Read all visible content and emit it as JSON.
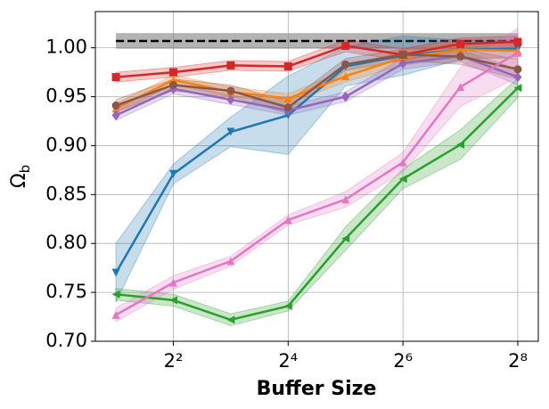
{
  "chart_data": {
    "type": "line",
    "xlabel": "Buffer Size",
    "ylabel": {
      "symbol": "Ω",
      "subscript": "b"
    },
    "xscale": "log2",
    "x": [
      2,
      4,
      8,
      16,
      32,
      64,
      128,
      256
    ],
    "xlim": [
      1.56,
      328
    ],
    "xticks": [
      {
        "value": 4,
        "label": "2²"
      },
      {
        "value": 16,
        "label": "2⁴"
      },
      {
        "value": 64,
        "label": "2⁶"
      },
      {
        "value": 256,
        "label": "2⁸"
      }
    ],
    "ylim": [
      0.7,
      1.037
    ],
    "yticks": [
      {
        "value": 0.7,
        "label": "0.70"
      },
      0.75,
      {
        "value": 0.8,
        "label": "0.80"
      },
      0.85,
      {
        "value": 0.9,
        "label": "0.90"
      },
      0.95,
      {
        "value": 1,
        "label": "1.00"
      }
    ],
    "grid": true,
    "reference": {
      "value": 1.007,
      "error": 0.008,
      "color": "#000000",
      "band_color": "#808080"
    },
    "series": [
      {
        "color": "#1f77b4",
        "marker": "triangle-down",
        "values": [
          0.77,
          0.871,
          0.914,
          0.931,
          0.981,
          0.992,
          0.998,
          0.999
        ],
        "error": [
          0.03,
          0.01,
          0.015,
          0.04,
          0.02,
          0.02,
          0.01,
          0.008
        ]
      },
      {
        "color": "#ff7f0e",
        "marker": "triangle-up",
        "values": [
          0.938,
          0.967,
          0.955,
          0.948,
          0.971,
          0.99,
          0.998,
          0.997
        ],
        "error": [
          0.005,
          0.005,
          0.005,
          0.005,
          0.006,
          0.008,
          0.008,
          0.008
        ]
      },
      {
        "color": "#2ca02c",
        "marker": "triangle-left",
        "values": [
          0.748,
          0.742,
          0.722,
          0.736,
          0.805,
          0.866,
          0.901,
          0.959
        ],
        "error": [
          0.006,
          0.006,
          0.006,
          0.005,
          0.012,
          0.01,
          0.015,
          0.01
        ]
      },
      {
        "color": "#d62728",
        "marker": "square",
        "values": [
          0.97,
          0.975,
          0.982,
          0.981,
          1.002,
          0.993,
          1.004,
          1.006
        ],
        "error": [
          0.005,
          0.005,
          0.005,
          0.005,
          0.006,
          0.006,
          0.006,
          0.006
        ]
      },
      {
        "color": "#9467bd",
        "marker": "diamond",
        "values": [
          0.931,
          0.958,
          0.947,
          0.936,
          0.95,
          0.984,
          0.992,
          0.97
        ],
        "error": [
          0.005,
          0.005,
          0.005,
          0.005,
          0.005,
          0.006,
          0.006,
          0.008
        ]
      },
      {
        "color": "#8c564b",
        "marker": "circle",
        "values": [
          0.941,
          0.962,
          0.956,
          0.939,
          0.983,
          0.993,
          0.991,
          0.978
        ],
        "error": [
          0.006,
          0.006,
          0.006,
          0.006,
          0.006,
          0.006,
          0.008,
          0.01
        ]
      },
      {
        "color": "#e377c2",
        "marker": "triangle-up",
        "values": [
          0.727,
          0.76,
          0.782,
          0.824,
          0.845,
          0.883,
          0.96,
          0.995
        ],
        "error": [
          0.007,
          0.007,
          0.005,
          0.005,
          0.008,
          0.01,
          0.02,
          0.025
        ]
      }
    ]
  }
}
